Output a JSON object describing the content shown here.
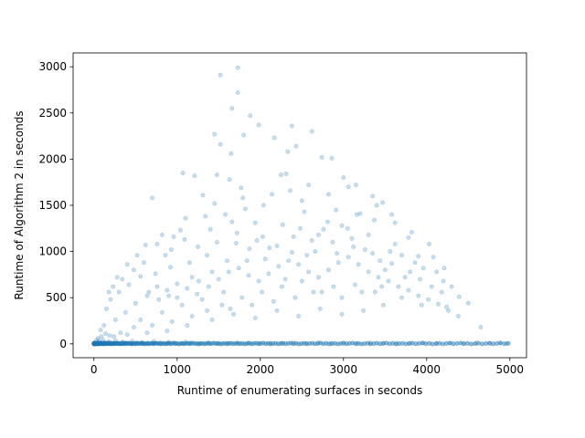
{
  "chart_data": {
    "type": "scatter",
    "title": "",
    "xlabel": "Runtime of enumerating surfaces in seconds",
    "ylabel": "Runtime of Algorithm 2 in seconds",
    "xlim": [
      -250,
      5200
    ],
    "ylim": [
      -150,
      3150
    ],
    "x_ticks": [
      0,
      1000,
      2000,
      3000,
      4000,
      5000
    ],
    "y_ticks": [
      0,
      500,
      1000,
      1500,
      2000,
      2500,
      3000
    ],
    "x_tick_labels": [
      "0",
      "1000",
      "2000",
      "3000",
      "4000",
      "5000"
    ],
    "y_tick_labels": [
      "0",
      "500",
      "1000",
      "1500",
      "2000",
      "2500",
      "3000"
    ],
    "grid": false,
    "legend": "none",
    "point_color": "#1f77b4",
    "point_alpha": 0.25,
    "series": [
      {
        "name": "",
        "points": [
          [
            1520,
            2910
          ],
          [
            1730,
            2990
          ],
          [
            1730,
            2720
          ],
          [
            1660,
            2550
          ],
          [
            1880,
            2470
          ],
          [
            1800,
            2260
          ],
          [
            1450,
            2270
          ],
          [
            1520,
            2160
          ],
          [
            1650,
            2060
          ],
          [
            1980,
            2370
          ],
          [
            2170,
            2230
          ],
          [
            2380,
            2360
          ],
          [
            2330,
            2080
          ],
          [
            2430,
            2140
          ],
          [
            2620,
            2300
          ],
          [
            1070,
            1850
          ],
          [
            1210,
            1820
          ],
          [
            1480,
            1830
          ],
          [
            1630,
            1780
          ],
          [
            1770,
            1690
          ],
          [
            2310,
            1840
          ],
          [
            2250,
            1830
          ],
          [
            2860,
            2010
          ],
          [
            2740,
            2020
          ],
          [
            3000,
            1800
          ],
          [
            3150,
            1720
          ],
          [
            3350,
            1600
          ],
          [
            3470,
            1530
          ],
          [
            3200,
            1410
          ],
          [
            2910,
            1450
          ],
          [
            2500,
            1550
          ],
          [
            2140,
            1620
          ],
          [
            1790,
            1580
          ],
          [
            1450,
            1520
          ],
          [
            1310,
            1610
          ],
          [
            1040,
            1230
          ],
          [
            700,
            1580
          ],
          [
            820,
            1180
          ],
          [
            620,
            1070
          ],
          [
            930,
            1020
          ],
          [
            1090,
            1130
          ],
          [
            1400,
            1240
          ],
          [
            1660,
            1320
          ],
          [
            1940,
            1310
          ],
          [
            2270,
            1290
          ],
          [
            2530,
            1430
          ],
          [
            2810,
            1320
          ],
          [
            3050,
            1250
          ],
          [
            3370,
            1340
          ],
          [
            3620,
            1310
          ],
          [
            3820,
            1210
          ],
          [
            4030,
            1080
          ],
          [
            3900,
            950
          ],
          [
            4080,
            940
          ],
          [
            4210,
            820
          ],
          [
            4300,
            620
          ],
          [
            4390,
            510
          ],
          [
            4500,
            440
          ],
          [
            4650,
            180
          ],
          [
            4240,
            400
          ],
          [
            3800,
            780
          ],
          [
            3580,
            870
          ],
          [
            3350,
            980
          ],
          [
            3120,
            1050
          ],
          [
            2870,
            1100
          ],
          [
            2620,
            1120
          ],
          [
            2380,
            990
          ],
          [
            2110,
            1040
          ],
          [
            1870,
            1030
          ],
          [
            1600,
            900
          ],
          [
            1360,
            960
          ],
          [
            1150,
            880
          ],
          [
            920,
            830
          ],
          [
            740,
            760
          ],
          [
            560,
            730
          ],
          [
            420,
            640
          ],
          [
            300,
            560
          ],
          [
            200,
            480
          ],
          [
            150,
            380
          ],
          [
            120,
            200
          ],
          [
            260,
            260
          ],
          [
            380,
            340
          ],
          [
            500,
            440
          ],
          [
            640,
            520
          ],
          [
            760,
            620
          ],
          [
            880,
            580
          ],
          [
            1000,
            650
          ],
          [
            1120,
            600
          ],
          [
            1240,
            540
          ],
          [
            1380,
            620
          ],
          [
            1500,
            700
          ],
          [
            1620,
            780
          ],
          [
            1740,
            820
          ],
          [
            1860,
            740
          ],
          [
            1980,
            680
          ],
          [
            2100,
            760
          ],
          [
            2220,
            840
          ],
          [
            2340,
            900
          ],
          [
            2460,
            860
          ],
          [
            2580,
            780
          ],
          [
            2700,
            720
          ],
          [
            2820,
            800
          ],
          [
            2940,
            880
          ],
          [
            3060,
            940
          ],
          [
            3180,
            860
          ],
          [
            3300,
            780
          ],
          [
            3420,
            720
          ],
          [
            3540,
            680
          ],
          [
            3660,
            620
          ],
          [
            3780,
            580
          ],
          [
            3900,
            520
          ],
          [
            4020,
            480
          ],
          [
            4140,
            430
          ],
          [
            4260,
            360
          ],
          [
            4380,
            300
          ],
          [
            3480,
            420
          ],
          [
            3240,
            360
          ],
          [
            2980,
            320
          ],
          [
            2720,
            380
          ],
          [
            2460,
            300
          ],
          [
            2200,
            360
          ],
          [
            1940,
            280
          ],
          [
            1680,
            320
          ],
          [
            1420,
            260
          ],
          [
            1180,
            300
          ],
          [
            940,
            240
          ],
          [
            700,
            200
          ],
          [
            480,
            180
          ],
          [
            320,
            120
          ],
          [
            560,
            260
          ],
          [
            820,
            340
          ],
          [
            1060,
            420
          ],
          [
            1300,
            480
          ],
          [
            1540,
            420
          ],
          [
            1780,
            500
          ],
          [
            2020,
            560
          ],
          [
            2260,
            620
          ],
          [
            2500,
            680
          ],
          [
            2740,
            560
          ],
          [
            2980,
            500
          ],
          [
            3220,
            560
          ],
          [
            3460,
            620
          ],
          [
            3700,
            500
          ],
          [
            3940,
            420
          ],
          [
            4180,
            560
          ],
          [
            3620,
            1080
          ],
          [
            3780,
            1150
          ],
          [
            3300,
            1180
          ],
          [
            2760,
            1240
          ],
          [
            2400,
            1160
          ],
          [
            2030,
            1160
          ],
          [
            1710,
            1090
          ],
          [
            1250,
            1050
          ],
          [
            860,
            960
          ],
          [
            600,
            880
          ],
          [
            480,
            800
          ],
          [
            340,
            700
          ],
          [
            230,
            620
          ],
          [
            180,
            560
          ],
          [
            660,
            560
          ],
          [
            780,
            480
          ],
          [
            900,
            520
          ],
          [
            1180,
            720
          ],
          [
            1420,
            780
          ],
          [
            1560,
            560
          ],
          [
            1840,
            900
          ],
          [
            2060,
            920
          ],
          [
            2300,
            700
          ],
          [
            2560,
            960
          ],
          [
            2660,
            1000
          ],
          [
            2920,
            980
          ],
          [
            3100,
            1140
          ],
          [
            3260,
            1020
          ],
          [
            3440,
            900
          ],
          [
            3560,
            1000
          ],
          [
            3700,
            960
          ],
          [
            3860,
            880
          ],
          [
            3960,
            820
          ],
          [
            4120,
            780
          ],
          [
            4200,
            680
          ],
          [
            4060,
            620
          ],
          [
            3920,
            700
          ],
          [
            3740,
            720
          ],
          [
            3500,
            800
          ],
          [
            3380,
            560
          ],
          [
            3140,
            640
          ],
          [
            2880,
            620
          ],
          [
            2640,
            560
          ],
          [
            2420,
            500
          ],
          [
            2160,
            460
          ],
          [
            1900,
            420
          ],
          [
            1640,
            380
          ],
          [
            1360,
            360
          ],
          [
            1120,
            200
          ],
          [
            880,
            140
          ],
          [
            640,
            120
          ],
          [
            400,
            100
          ],
          [
            240,
            80
          ],
          [
            1000,
            500
          ],
          [
            1260,
            680
          ],
          [
            1480,
            1100
          ],
          [
            1720,
            1200
          ],
          [
            1960,
            1120
          ],
          [
            2200,
            1060
          ],
          [
            2480,
            1250
          ],
          [
            2700,
            1180
          ],
          [
            2980,
            1280
          ],
          [
            3160,
            1400
          ],
          [
            3400,
            1500
          ],
          [
            3580,
            1400
          ],
          [
            3060,
            1700
          ],
          [
            2820,
            1620
          ],
          [
            2580,
            1720
          ],
          [
            2360,
            1660
          ],
          [
            2040,
            1500
          ],
          [
            1820,
            1460
          ],
          [
            1580,
            1400
          ],
          [
            1340,
            1380
          ],
          [
            1100,
            1360
          ],
          [
            960,
            1160
          ],
          [
            760,
            1080
          ],
          [
            520,
            960
          ],
          [
            400,
            860
          ],
          [
            280,
            720
          ],
          [
            0,
            5
          ],
          [
            20,
            8
          ],
          [
            45,
            2
          ],
          [
            70,
            12
          ],
          [
            100,
            6
          ],
          [
            130,
            15
          ],
          [
            160,
            4
          ],
          [
            200,
            10
          ],
          [
            240,
            7
          ],
          [
            290,
            3
          ],
          [
            340,
            14
          ],
          [
            390,
            9
          ],
          [
            450,
            5
          ],
          [
            510,
            11
          ],
          [
            580,
            4
          ],
          [
            650,
            8
          ],
          [
            720,
            6
          ],
          [
            800,
            13
          ],
          [
            880,
            3
          ],
          [
            970,
            9
          ],
          [
            1060,
            5
          ],
          [
            1160,
            10
          ],
          [
            1270,
            4
          ],
          [
            1380,
            12
          ],
          [
            1490,
            6
          ],
          [
            1610,
            8
          ],
          [
            1730,
            3
          ],
          [
            1860,
            11
          ],
          [
            1990,
            5
          ],
          [
            2120,
            9
          ],
          [
            2260,
            4
          ],
          [
            2400,
            10
          ],
          [
            2550,
            6
          ],
          [
            2700,
            12
          ],
          [
            2850,
            5
          ],
          [
            3000,
            8
          ],
          [
            3160,
            4
          ],
          [
            3320,
            10
          ],
          [
            3480,
            6
          ],
          [
            3640,
            9
          ],
          [
            3800,
            5
          ],
          [
            3960,
            11
          ],
          [
            4120,
            4
          ],
          [
            4280,
            8
          ],
          [
            4440,
            6
          ],
          [
            4600,
            10
          ],
          [
            4760,
            5
          ],
          [
            4880,
            9
          ],
          [
            4960,
            4
          ],
          [
            60,
            30
          ],
          [
            110,
            40
          ],
          [
            180,
            25
          ],
          [
            260,
            35
          ],
          [
            350,
            20
          ],
          [
            460,
            30
          ],
          [
            580,
            15
          ],
          [
            720,
            25
          ],
          [
            900,
            18
          ],
          [
            1100,
            22
          ],
          [
            50,
            60
          ],
          [
            90,
            80
          ],
          [
            140,
            110
          ],
          [
            190,
            90
          ],
          [
            80,
            150
          ],
          [
            30,
            40
          ]
        ]
      }
    ]
  }
}
